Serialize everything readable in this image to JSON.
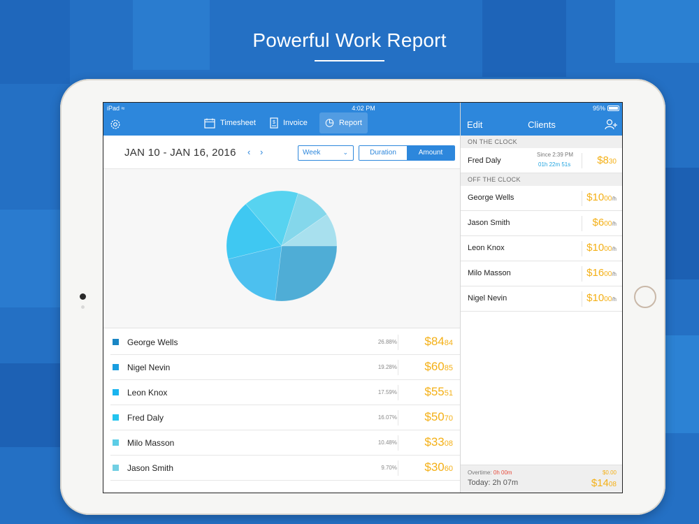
{
  "promo": {
    "title": "Powerful Work Report"
  },
  "status_bar": {
    "device": "iPad",
    "time": "4:02 PM",
    "battery": "95%"
  },
  "toolbar": {
    "tabs": [
      {
        "label": "Timesheet",
        "icon": "calendar-icon"
      },
      {
        "label": "Invoice",
        "icon": "invoice-icon"
      },
      {
        "label": "Report",
        "icon": "pie-chart-icon",
        "active": true
      }
    ]
  },
  "right_nav": {
    "edit": "Edit",
    "title": "Clients"
  },
  "report": {
    "date_range": "JAN 10 - JAN 16, 2016",
    "period": "Week",
    "toggle": {
      "duration": "Duration",
      "amount": "Amount",
      "selected": "Amount"
    }
  },
  "chart_data": {
    "type": "pie",
    "categories": [
      "George Wells",
      "Nigel Nevin",
      "Leon Knox",
      "Fred Daly",
      "Milo Masson",
      "Jason Smith"
    ],
    "values": [
      26.88,
      19.28,
      17.59,
      16.07,
      10.48,
      9.7
    ],
    "colors": [
      "#4fadd6",
      "#4cc0ef",
      "#3fc8f2",
      "#57d3f0",
      "#84d7eb",
      "#a8e0ee"
    ]
  },
  "entries": [
    {
      "name": "George Wells",
      "percent": "26.88%",
      "amount_main": "$84",
      "amount_cents": "84",
      "color": "#1a86c4"
    },
    {
      "name": "Nigel Nevin",
      "percent": "19.28%",
      "amount_main": "$60",
      "amount_cents": "85",
      "color": "#1a9ee0"
    },
    {
      "name": "Leon Knox",
      "percent": "17.59%",
      "amount_main": "$55",
      "amount_cents": "51",
      "color": "#19b4ef"
    },
    {
      "name": "Fred Daly",
      "percent": "16.07%",
      "amount_main": "$50",
      "amount_cents": "70",
      "color": "#23c4ef"
    },
    {
      "name": "Milo Masson",
      "percent": "10.48%",
      "amount_main": "$33",
      "amount_cents": "08",
      "color": "#5ccde6"
    },
    {
      "name": "Jason Smith",
      "percent": "9.70%",
      "amount_main": "$30",
      "amount_cents": "60",
      "color": "#72cfe3"
    }
  ],
  "clients": {
    "on_clock_header": "ON THE CLOCK",
    "on_clock": {
      "name": "Fred Daly",
      "since": "Since 2:39 PM",
      "elapsed": "01h 22m 51s",
      "amount_main": "$8",
      "amount_cents": "30"
    },
    "off_clock_header": "OFF THE CLOCK",
    "off_clock": [
      {
        "name": "George Wells",
        "rate_main": "$10",
        "rate_cents": "00",
        "unit": "/h"
      },
      {
        "name": "Jason Smith",
        "rate_main": "$6",
        "rate_cents": "00",
        "unit": "/h"
      },
      {
        "name": "Leon Knox",
        "rate_main": "$10",
        "rate_cents": "00",
        "unit": "/h"
      },
      {
        "name": "Milo Masson",
        "rate_main": "$16",
        "rate_cents": "00",
        "unit": "/h"
      },
      {
        "name": "Nigel Nevin",
        "rate_main": "$10",
        "rate_cents": "00",
        "unit": "/h"
      }
    ],
    "footer": {
      "overtime_label": "Overtime:",
      "overtime_value": "0h 00m",
      "overtime_amount": "$0.00",
      "today_label": "Today: 2h 07m",
      "today_amount_main": "$14",
      "today_amount_cents": "08"
    }
  },
  "colors": {
    "accent": "#2d87dc",
    "money": "#f4b017",
    "background": "#2470c4"
  }
}
